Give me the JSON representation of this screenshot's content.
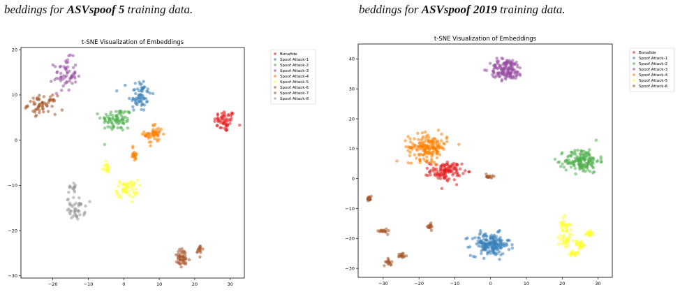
{
  "captions": {
    "left": {
      "prefix": "beddings for ",
      "bold": "ASVspoof 5",
      "suffix": " training data."
    },
    "right": {
      "prefix": "beddings for ",
      "bold": "ASVspoof 2019",
      "suffix": " training data."
    }
  },
  "colors": {
    "Bonafide": "#e41a1c",
    "Spoof Attack-1": "#377eb8",
    "Spoof Attack-2": "#4daf4a",
    "Spoof Attack-3": "#984ea3",
    "Spoof Attack-4": "#ff7f00",
    "Spoof Attack-5": "#ffff33",
    "Spoof Attack-6": "#a65628",
    "Spoof Attack-7": "#a65628",
    "Spoof Attack-8": "#999999"
  },
  "chart_data": [
    {
      "type": "scatter",
      "title": "t-SNE Visualization of Embeddings",
      "xlim": [
        -29,
        34
      ],
      "ylim": [
        -30.5,
        20.5
      ],
      "xticks": [
        -20,
        -10,
        0,
        10,
        20,
        30
      ],
      "yticks": [
        -30,
        -20,
        -10,
        0,
        10,
        20
      ],
      "legend_position": "outside-top-right",
      "grid": false,
      "series": [
        {
          "name": "Bonafide",
          "clusters": [
            {
              "cx": 28.5,
              "cy": 4.2,
              "sx": 1.5,
              "sy": 1.2,
              "n": 55
            }
          ]
        },
        {
          "name": "Spoof Attack-1",
          "clusters": [
            {
              "cx": 4.5,
              "cy": 10.0,
              "sx": 1.6,
              "sy": 1.9,
              "n": 65
            }
          ]
        },
        {
          "name": "Spoof Attack-2",
          "clusters": [
            {
              "cx": -2.0,
              "cy": 4.5,
              "sx": 2.2,
              "sy": 1.3,
              "n": 80
            }
          ]
        },
        {
          "name": "Spoof Attack-3",
          "clusters": [
            {
              "cx": -16.5,
              "cy": 14.5,
              "sx": 1.6,
              "sy": 1.8,
              "n": 60
            }
          ]
        },
        {
          "name": "Spoof Attack-4",
          "clusters": [
            {
              "cx": 8.5,
              "cy": 1.3,
              "sx": 1.3,
              "sy": 1.1,
              "n": 50
            },
            {
              "cx": 3.0,
              "cy": -3.0,
              "sx": 0.5,
              "sy": 0.9,
              "n": 18
            }
          ]
        },
        {
          "name": "Spoof Attack-5",
          "clusters": [
            {
              "cx": 1.0,
              "cy": -10.8,
              "sx": 1.5,
              "sy": 1.0,
              "n": 55
            },
            {
              "cx": -5.0,
              "cy": -6.2,
              "sx": 0.6,
              "sy": 0.6,
              "n": 18
            }
          ]
        },
        {
          "name": "Spoof Attack-6",
          "clusters": [
            {
              "cx": -23.0,
              "cy": 7.8,
              "sx": 2.0,
              "sy": 1.0,
              "n": 60
            }
          ]
        },
        {
          "name": "Spoof Attack-7",
          "clusters": [
            {
              "cx": 16.5,
              "cy": -26.2,
              "sx": 1.1,
              "sy": 1.1,
              "n": 45
            },
            {
              "cx": 21.5,
              "cy": -24.2,
              "sx": 0.4,
              "sy": 0.6,
              "n": 15
            }
          ]
        },
        {
          "name": "Spoof Attack-8",
          "clusters": [
            {
              "cx": -13.5,
              "cy": -15.2,
              "sx": 1.3,
              "sy": 1.2,
              "n": 45
            },
            {
              "cx": -14.5,
              "cy": -10.4,
              "sx": 0.5,
              "sy": 0.6,
              "n": 14
            }
          ]
        }
      ]
    },
    {
      "type": "scatter",
      "title": "t-SNE Visualization of Embeddings",
      "xlim": [
        -37,
        34
      ],
      "ylim": [
        -33,
        45
      ],
      "xticks": [
        -30,
        -20,
        -10,
        0,
        10,
        20,
        30
      ],
      "yticks": [
        -30,
        -20,
        -10,
        0,
        10,
        20,
        30,
        40
      ],
      "legend_position": "outside-top-right",
      "grid": false,
      "series": [
        {
          "name": "Bonafide",
          "clusters": [
            {
              "cx": -12.5,
              "cy": 2.5,
              "sx": 2.2,
              "sy": 1.5,
              "n": 110
            }
          ]
        },
        {
          "name": "Spoof Attack-1",
          "clusters": [
            {
              "cx": 0.0,
              "cy": -22.0,
              "sx": 2.7,
              "sy": 1.9,
              "n": 170
            }
          ]
        },
        {
          "name": "Spoof Attack-2",
          "clusters": [
            {
              "cx": 25.5,
              "cy": 6.0,
              "sx": 2.4,
              "sy": 2.0,
              "n": 150
            }
          ]
        },
        {
          "name": "Spoof Attack-3",
          "clusters": [
            {
              "cx": 4.5,
              "cy": 36.5,
              "sx": 2.3,
              "sy": 1.8,
              "n": 150
            }
          ]
        },
        {
          "name": "Spoof Attack-4",
          "clusters": [
            {
              "cx": -17.5,
              "cy": 10.5,
              "sx": 2.7,
              "sy": 2.2,
              "n": 170
            }
          ]
        },
        {
          "name": "Spoof Attack-5",
          "clusters": [
            {
              "cx": 20.5,
              "cy": -15.5,
              "sx": 0.8,
              "sy": 1.3,
              "n": 25
            },
            {
              "cx": 21.0,
              "cy": -20.5,
              "sx": 1.0,
              "sy": 1.2,
              "n": 30
            },
            {
              "cx": 25.0,
              "cy": -22.0,
              "sx": 0.8,
              "sy": 0.6,
              "n": 25
            },
            {
              "cx": 27.5,
              "cy": -18.5,
              "sx": 0.6,
              "sy": 0.6,
              "n": 20
            },
            {
              "cx": 23.5,
              "cy": -25.0,
              "sx": 0.7,
              "sy": 0.5,
              "n": 18
            }
          ]
        },
        {
          "name": "Spoof Attack-6",
          "clusters": [
            {
              "cx": -34.0,
              "cy": -6.5,
              "sx": 0.4,
              "sy": 0.5,
              "n": 15
            },
            {
              "cx": -30.0,
              "cy": -17.5,
              "sx": 0.6,
              "sy": 0.4,
              "n": 15
            },
            {
              "cx": -17.0,
              "cy": -16.2,
              "sx": 0.5,
              "sy": 0.5,
              "n": 15
            },
            {
              "cx": -28.5,
              "cy": -28.0,
              "sx": 0.4,
              "sy": 0.6,
              "n": 15
            },
            {
              "cx": -24.5,
              "cy": -25.5,
              "sx": 0.6,
              "sy": 0.4,
              "n": 14
            },
            {
              "cx": -0.5,
              "cy": 0.8,
              "sx": 0.5,
              "sy": 0.5,
              "n": 14
            }
          ]
        }
      ]
    }
  ]
}
